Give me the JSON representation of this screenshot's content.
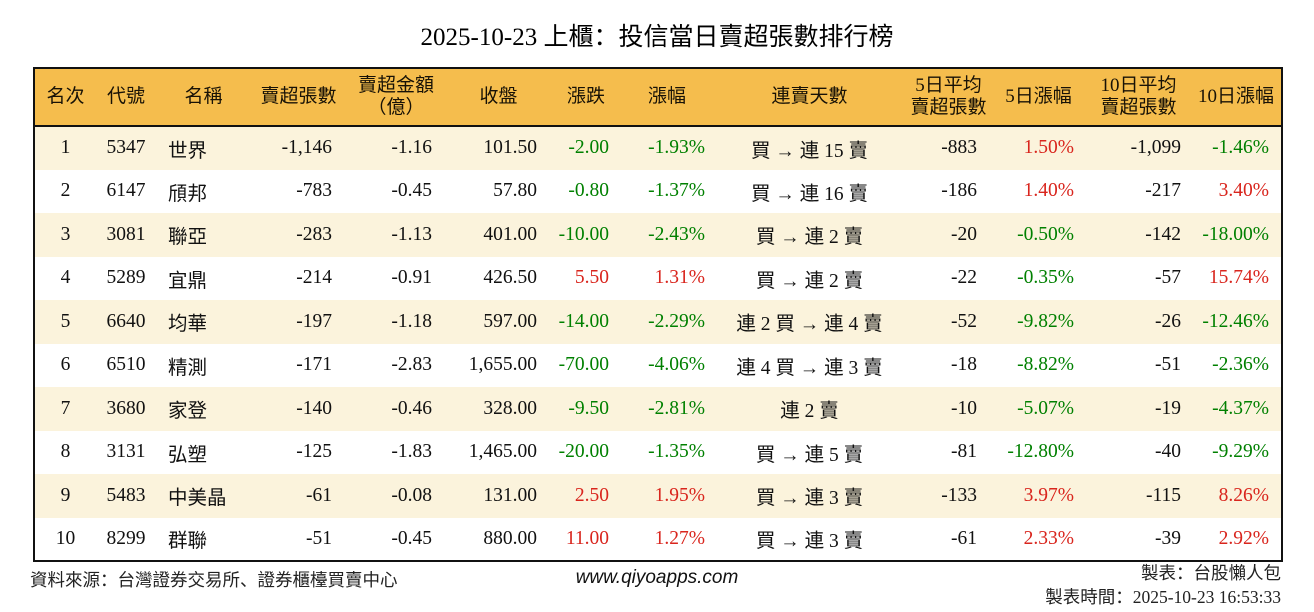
{
  "colors": {
    "header_bg": "#f5bd4d",
    "row_alt_bg": "#fbf3dc",
    "up_red": "#d9251d",
    "down_green": "#008000",
    "border": "#111111"
  },
  "table": {
    "headers": [
      {
        "line1": "名次"
      },
      {
        "line1": "代號"
      },
      {
        "line1": "名稱"
      },
      {
        "line1": "賣超張數"
      },
      {
        "line1": "賣超金額",
        "line2": "（億）"
      },
      {
        "line1": "收盤"
      },
      {
        "line1": "漲跌"
      },
      {
        "line1": "漲幅"
      },
      {
        "line1": "連賣天數"
      },
      {
        "line1": "5日平均",
        "line2": "賣超張數"
      },
      {
        "line1": "5日漲幅"
      },
      {
        "line1": "10日平均",
        "line2": "賣超張數"
      },
      {
        "line1": "10日漲幅"
      }
    ]
  },
  "chart_data": {
    "type": "table",
    "title": "2025-10-23 上櫃：投信當日賣超張數排行榜",
    "columns": [
      "名次",
      "代號",
      "名稱",
      "賣超張數",
      "賣超金額（億）",
      "收盤",
      "漲跌",
      "漲幅",
      "連賣天數",
      "5日平均賣超張數",
      "5日漲幅",
      "10日平均賣超張數",
      "10日漲幅"
    ],
    "rows": [
      [
        "1",
        "5347",
        "世界",
        "-1,146",
        "-1.16",
        "101.50",
        "-2.00",
        "-1.93%",
        "買 → 連 15 賣",
        "-883",
        "1.50%",
        "-1,099",
        "-1.46%"
      ],
      [
        "2",
        "6147",
        "頎邦",
        "-783",
        "-0.45",
        "57.80",
        "-0.80",
        "-1.37%",
        "買 → 連 16 賣",
        "-186",
        "1.40%",
        "-217",
        "3.40%"
      ],
      [
        "3",
        "3081",
        "聯亞",
        "-283",
        "-1.13",
        "401.00",
        "-10.00",
        "-2.43%",
        "買 → 連 2 賣",
        "-20",
        "-0.50%",
        "-142",
        "-18.00%"
      ],
      [
        "4",
        "5289",
        "宜鼎",
        "-214",
        "-0.91",
        "426.50",
        "5.50",
        "1.31%",
        "買 → 連 2 賣",
        "-22",
        "-0.35%",
        "-57",
        "15.74%"
      ],
      [
        "5",
        "6640",
        "均華",
        "-197",
        "-1.18",
        "597.00",
        "-14.00",
        "-2.29%",
        "連 2 買 → 連 4 賣",
        "-52",
        "-9.82%",
        "-26",
        "-12.46%"
      ],
      [
        "6",
        "6510",
        "精測",
        "-171",
        "-2.83",
        "1,655.00",
        "-70.00",
        "-4.06%",
        "連 4 買 → 連 3 賣",
        "-18",
        "-8.82%",
        "-51",
        "-2.36%"
      ],
      [
        "7",
        "3680",
        "家登",
        "-140",
        "-0.46",
        "328.00",
        "-9.50",
        "-2.81%",
        "連 2 賣",
        "-10",
        "-5.07%",
        "-19",
        "-4.37%"
      ],
      [
        "8",
        "3131",
        "弘塑",
        "-125",
        "-1.83",
        "1,465.00",
        "-20.00",
        "-1.35%",
        "買 → 連 5 賣",
        "-81",
        "-12.80%",
        "-40",
        "-9.29%"
      ],
      [
        "9",
        "5483",
        "中美晶",
        "-61",
        "-0.08",
        "131.00",
        "2.50",
        "1.95%",
        "買 → 連 3 賣",
        "-133",
        "3.97%",
        "-115",
        "8.26%"
      ],
      [
        "10",
        "8299",
        "群聯",
        "-51",
        "-0.45",
        "880.00",
        "11.00",
        "1.27%",
        "買 → 連 3 賣",
        "-61",
        "2.33%",
        "-39",
        "2.92%"
      ]
    ],
    "color_rule": "negative values green, positive values red (columns 漲跌 / 漲幅 / 5日漲幅 / 10日漲幅)"
  },
  "footer": {
    "source": "資料來源：台灣證券交易所、證券櫃檯買賣中心",
    "website": "www.qiyoapps.com",
    "maker": "製表：台股懶人包",
    "timestamp": "製表時間：2025-10-23 16:53:33"
  }
}
